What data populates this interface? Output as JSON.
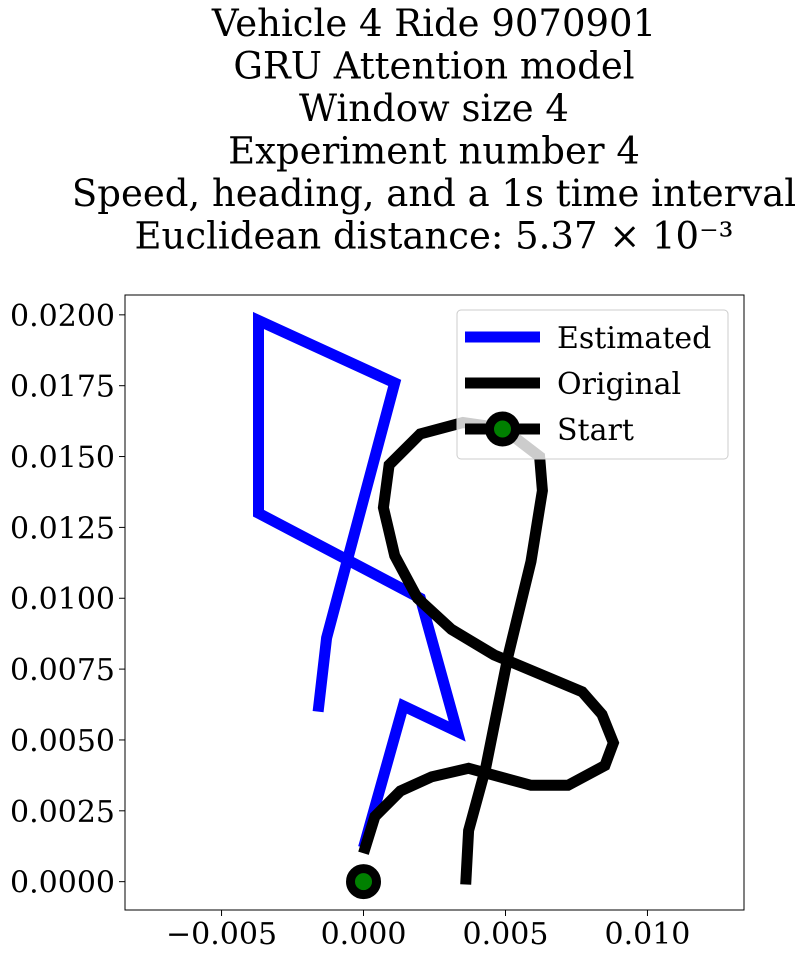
{
  "chart_data": {
    "type": "line",
    "title_lines": [
      "Vehicle 4 Ride 9070901",
      "GRU Attention model",
      "Window size 4",
      "Experiment number 4",
      "Speed, heading, and a 1s time interval",
      "Euclidean distance: 5.37 × 10⁻³"
    ],
    "xlabel": "",
    "ylabel": "",
    "xlim": [
      -0.0084,
      0.0134
    ],
    "ylim": [
      -0.001,
      0.0207
    ],
    "x_ticks": [
      -0.005,
      0.0,
      0.005,
      0.01
    ],
    "x_tick_labels": [
      "−0.005",
      "0.000",
      "0.005",
      "0.010"
    ],
    "y_ticks": [
      0.0,
      0.0025,
      0.005,
      0.0075,
      0.01,
      0.0125,
      0.015,
      0.0175,
      0.02
    ],
    "y_tick_labels": [
      "0.0000",
      "0.0025",
      "0.0050",
      "0.0075",
      "0.0100",
      "0.0125",
      "0.0150",
      "0.0175",
      "0.0200"
    ],
    "grid": false,
    "legend_position": "top-right",
    "series": [
      {
        "name": "Estimated",
        "color": "#0000ff",
        "x": [
          0.0,
          0.0014,
          0.0033,
          0.002,
          -0.0037,
          -0.0037,
          0.0011,
          -0.0013,
          -0.0016
        ],
        "y": [
          0.0012,
          0.0062,
          0.0053,
          0.01,
          0.013,
          0.0198,
          0.0176,
          0.0086,
          0.006
        ]
      },
      {
        "name": "Original",
        "color": "#000000",
        "x": [
          0.0,
          0.0004,
          0.0013,
          0.0024,
          0.0037,
          0.0059,
          0.0072,
          0.0085,
          0.0088,
          0.0084,
          0.0077,
          0.0046,
          0.0031,
          0.0019,
          0.0011,
          0.0007,
          0.0009,
          0.002,
          0.0035,
          0.0049,
          0.0062,
          0.0063,
          0.0059,
          0.0051,
          0.0043,
          0.0037,
          0.0036
        ],
        "y": [
          0.001,
          0.0023,
          0.0032,
          0.0037,
          0.004,
          0.0034,
          0.0034,
          0.0041,
          0.0049,
          0.0059,
          0.0067,
          0.008,
          0.0089,
          0.01,
          0.0115,
          0.0132,
          0.0147,
          0.0158,
          0.0162,
          0.016,
          0.015,
          0.0138,
          0.0113,
          0.008,
          0.004,
          0.0018,
          -0.0001
        ]
      }
    ],
    "start_marker": {
      "name": "Start",
      "x": 0.0,
      "y": 0.0,
      "color": "#008000",
      "edge_color": "#000000"
    }
  }
}
